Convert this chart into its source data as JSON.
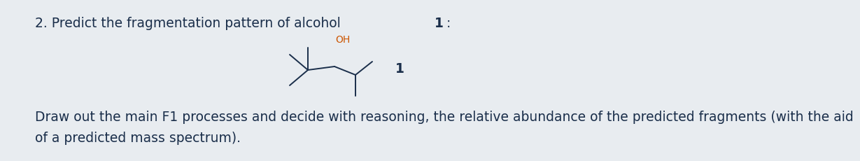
{
  "title_normal": "2. Predict the fragmentation pattern of alcohol ",
  "title_bold": "1",
  "title_colon": ":",
  "body_line1": "Draw out the main F1 processes and decide with reasoning, the relative abundance of the predicted fragments (with the aid",
  "body_line2": "of a predicted mass spectrum).",
  "text_color": "#1a2e4a",
  "background_color": "#e8ecf0",
  "title_fontsize": 13.5,
  "body_fontsize": 13.5,
  "molecule_label": "1",
  "mol_lc": "#1a2e4a",
  "oh_color": "#cc5500"
}
